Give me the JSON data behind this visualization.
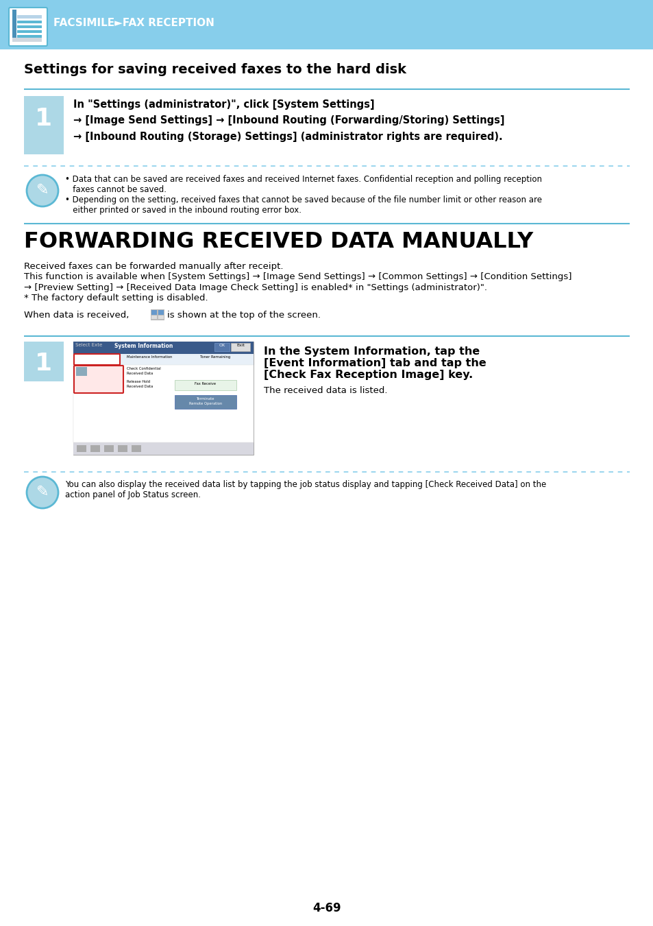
{
  "header_bg": "#87CEEB",
  "header_text": "FACSIMILE►FAX RECEPTION",
  "header_text_color": "#FFFFFF",
  "page_bg": "#FFFFFF",
  "section1_title": "Settings for saving received faxes to the hard disk",
  "step1_bg": "#ADD8E6",
  "step1_number": "1",
  "step1_line1": "In \"Settings (administrator)\", click [System Settings]",
  "step1_line2": "→ [Image Send Settings] → [Inbound Routing (Forwarding/Storing) Settings]",
  "step1_line3": "→ [Inbound Routing (Storage) Settings] (administrator rights are required).",
  "note1_b1_l1": "• Data that can be saved are received faxes and received Internet faxes. Confidential reception and polling reception",
  "note1_b1_l2": "   faxes cannot be saved.",
  "note1_b2_l1": "• Depending on the setting, received faxes that cannot be saved because of the file number limit or other reason are",
  "note1_b2_l2": "   either printed or saved in the inbound routing error box.",
  "section2_title": "FORWARDING RECEIVED DATA MANUALLY",
  "s2_p1": "Received faxes can be forwarded manually after receipt.",
  "s2_p2_l1": "This function is available when [System Settings] → [Image Send Settings] → [Common Settings] → [Condition Settings]",
  "s2_p2_l2": "→ [Preview Setting] → [Received Data Image Check Setting] is enabled* in \"Settings (administrator)\".",
  "s2_p3": "* The factory default setting is disabled.",
  "s2_p4_pre": "When data is received,",
  "s2_p4_post": "is shown at the top of the screen.",
  "step2_number": "1",
  "step2_bold1": "In the System Information, tap the",
  "step2_bold2": "[Event Information] tab and tap the",
  "step2_bold3": "[Check Fax Reception Image] key.",
  "step2_normal": "The received data is listed.",
  "note2_l1": "You can also display the received data list by tapping the job status display and tapping [Check Received Data] on the",
  "note2_l2": "action panel of Job Status screen.",
  "page_number": "4-69",
  "line_color": "#5BB8D4",
  "dot_color": "#87CEEB",
  "text_dark": "#000000"
}
